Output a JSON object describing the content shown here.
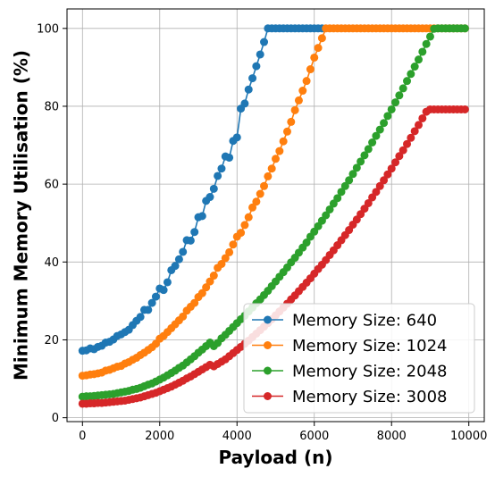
{
  "chart_data": {
    "type": "line",
    "title": "",
    "xlabel": "Payload (n)",
    "ylabel": "Minimum Memory Utilisation (%)",
    "xlim": [
      -400,
      10400
    ],
    "ylim": [
      -1,
      105
    ],
    "xticks": [
      0,
      2000,
      4000,
      6000,
      8000,
      10000
    ],
    "yticks": [
      0,
      20,
      40,
      60,
      80,
      100
    ],
    "grid": true,
    "legend_position": "lower-right",
    "series": [
      {
        "name": "Memory Size: 640",
        "color": "#1f77b4",
        "x": [
          0,
          100,
          200,
          300,
          400,
          500,
          600,
          700,
          800,
          900,
          1000,
          1100,
          1200,
          1300,
          1400,
          1500,
          1600,
          1700,
          1800,
          1900,
          2000,
          2100,
          2200,
          2300,
          2400,
          2500,
          2600,
          2700,
          2800,
          2900,
          3000,
          3100,
          3200,
          3300,
          3400,
          3500,
          3600,
          3700,
          3800,
          3900,
          4000,
          4100,
          4200,
          4300,
          4400,
          4500,
          4600,
          4700,
          4800,
          4900,
          5000,
          5100,
          5200,
          5300,
          5400,
          5500,
          5600,
          5700,
          5800,
          5900,
          6000,
          6100,
          6200
        ],
        "values": [
          17.2,
          17.3,
          17.8,
          17.6,
          18.2,
          18.5,
          19.3,
          19.5,
          20.1,
          21,
          21.4,
          22,
          22.6,
          23.8,
          24.9,
          25.9,
          27.7,
          27.7,
          29.5,
          31.1,
          33.2,
          32.8,
          34.8,
          37.9,
          39,
          40.7,
          42.6,
          45.6,
          45.5,
          47.7,
          51.5,
          51.8,
          55.7,
          56.7,
          58.8,
          62.1,
          64,
          67.1,
          66.8,
          71.1,
          72,
          79.4,
          80.7,
          84.3,
          87.2,
          90.3,
          93.3,
          96.5,
          100,
          100,
          100,
          100,
          100,
          100,
          100,
          100,
          100,
          100,
          100,
          100,
          100,
          100,
          100
        ]
      },
      {
        "name": "Memory Size: 1024",
        "color": "#ff7f0e",
        "x": [
          0,
          100,
          200,
          300,
          400,
          500,
          600,
          700,
          800,
          900,
          1000,
          1100,
          1200,
          1300,
          1400,
          1500,
          1600,
          1700,
          1800,
          1900,
          2000,
          2100,
          2200,
          2300,
          2400,
          2500,
          2600,
          2700,
          2800,
          2900,
          3000,
          3100,
          3200,
          3300,
          3400,
          3500,
          3600,
          3700,
          3800,
          3900,
          4000,
          4100,
          4200,
          4300,
          4400,
          4500,
          4600,
          4700,
          4800,
          4900,
          5000,
          5100,
          5200,
          5300,
          5400,
          5500,
          5600,
          5700,
          5800,
          5900,
          6000,
          6100,
          6200,
          6300,
          6400,
          6500,
          6600,
          6700,
          6800,
          6900,
          7000,
          7100,
          7200,
          7300,
          7400,
          7500,
          7600,
          7700,
          7800,
          7900,
          8000,
          8100,
          8200,
          8300,
          8400,
          8500,
          8600,
          8700,
          8800,
          8900,
          9000,
          9100,
          9200,
          9300,
          9400,
          9500,
          9600,
          9700,
          9800,
          9900
        ],
        "values": [
          10.8,
          10.9,
          11.1,
          11.2,
          11.4,
          11.6,
          12.1,
          12.3,
          12.7,
          13.1,
          13.3,
          13.9,
          14.3,
          14.9,
          15.4,
          16.1,
          16.7,
          17.4,
          18.1,
          19,
          20.3,
          21,
          22,
          23,
          24,
          25,
          26,
          27.5,
          28.5,
          29.5,
          31,
          32,
          33.5,
          35,
          36.5,
          38.5,
          39.5,
          41,
          42.5,
          44.5,
          46.5,
          47.5,
          49.5,
          51.5,
          54,
          55.5,
          57.5,
          59.5,
          62,
          64,
          66.5,
          68.5,
          71,
          73.5,
          76,
          79,
          81.5,
          84,
          86.5,
          89.5,
          92.5,
          95,
          97.5,
          100,
          100,
          100,
          100,
          100,
          100,
          100,
          100,
          100,
          100,
          100,
          100,
          100,
          100,
          100,
          100,
          100,
          100,
          100,
          100,
          100,
          100,
          100,
          100,
          100,
          100,
          100,
          100,
          100,
          100,
          100,
          100,
          100,
          100,
          100,
          100,
          100
        ]
      },
      {
        "name": "Memory Size: 2048",
        "color": "#2ca02c",
        "x": [
          0,
          100,
          200,
          300,
          400,
          500,
          600,
          700,
          800,
          900,
          1000,
          1100,
          1200,
          1300,
          1400,
          1500,
          1600,
          1700,
          1800,
          1900,
          2000,
          2100,
          2200,
          2300,
          2400,
          2500,
          2600,
          2700,
          2800,
          2900,
          3000,
          3100,
          3200,
          3300,
          3400,
          3500,
          3600,
          3700,
          3800,
          3900,
          4000,
          4100,
          4200,
          4300,
          4400,
          4500,
          4600,
          4700,
          4800,
          4900,
          5000,
          5100,
          5200,
          5300,
          5400,
          5500,
          5600,
          5700,
          5800,
          5900,
          6000,
          6100,
          6200,
          6300,
          6400,
          6500,
          6600,
          6700,
          6800,
          6900,
          7000,
          7100,
          7200,
          7300,
          7400,
          7500,
          7600,
          7700,
          7800,
          7900,
          8000,
          8100,
          8200,
          8300,
          8400,
          8500,
          8600,
          8700,
          8800,
          8900,
          9000,
          9100,
          9200,
          9300,
          9400,
          9500,
          9600,
          9700,
          9800,
          9900
        ],
        "values": [
          5.4,
          5.5,
          5.5,
          5.6,
          5.7,
          5.8,
          5.9,
          6,
          6.1,
          6.3,
          6.5,
          6.7,
          6.9,
          7.2,
          7.4,
          7.7,
          8.1,
          8.5,
          8.8,
          9.3,
          9.8,
          10.3,
          10.9,
          11.5,
          12.1,
          12.8,
          13.4,
          14.2,
          15,
          15.8,
          16.7,
          17.5,
          18.4,
          19.3,
          18.4,
          19.2,
          20.4,
          21.3,
          22.3,
          23.3,
          24.3,
          25.3,
          26.2,
          27.3,
          28.3,
          29.4,
          30.4,
          31.5,
          32.6,
          33.8,
          35,
          36.2,
          37.4,
          38.6,
          39.9,
          41.1,
          42.4,
          43.7,
          45,
          46.5,
          47.8,
          49.2,
          50.6,
          52,
          53.5,
          55,
          56.4,
          58,
          59.5,
          61,
          62.6,
          64.2,
          65.8,
          67.4,
          69,
          70.7,
          72.4,
          74,
          75.7,
          77.5,
          79.2,
          81,
          82.8,
          84.6,
          86.5,
          88.3,
          90.2,
          92,
          94,
          96,
          97.9,
          99.9,
          100,
          100,
          100,
          100,
          100,
          100,
          100,
          100
        ]
      },
      {
        "name": "Memory Size: 3008",
        "color": "#d62728",
        "x": [
          0,
          100,
          200,
          300,
          400,
          500,
          600,
          700,
          800,
          900,
          1000,
          1100,
          1200,
          1300,
          1400,
          1500,
          1600,
          1700,
          1800,
          1900,
          2000,
          2100,
          2200,
          2300,
          2400,
          2500,
          2600,
          2700,
          2800,
          2900,
          3000,
          3100,
          3200,
          3300,
          3400,
          3500,
          3600,
          3700,
          3800,
          3900,
          4000,
          4100,
          4200,
          4300,
          4400,
          4500,
          4600,
          4700,
          4800,
          4900,
          5000,
          5100,
          5200,
          5300,
          5400,
          5500,
          5600,
          5700,
          5800,
          5900,
          6000,
          6100,
          6200,
          6300,
          6400,
          6500,
          6600,
          6700,
          6800,
          6900,
          7000,
          7100,
          7200,
          7300,
          7400,
          7500,
          7600,
          7700,
          7800,
          7900,
          8000,
          8100,
          8200,
          8300,
          8400,
          8500,
          8600,
          8700,
          8800,
          8900,
          9000,
          9100,
          9200,
          9300,
          9400,
          9500,
          9600,
          9700,
          9800,
          9900
        ],
        "values": [
          3.6,
          3.6,
          3.7,
          3.7,
          3.8,
          3.8,
          3.9,
          4,
          4.1,
          4.2,
          4.3,
          4.4,
          4.6,
          4.8,
          5,
          5.2,
          5.5,
          5.8,
          6.1,
          6.4,
          6.8,
          7.2,
          7.6,
          8,
          8.5,
          9,
          9.5,
          10.1,
          10.6,
          11.2,
          11.8,
          12.4,
          13,
          13.6,
          13.2,
          13.8,
          14.4,
          15,
          15.8,
          16.6,
          17.4,
          18.2,
          19,
          19.8,
          20.7,
          21.6,
          22.5,
          23.4,
          24.3,
          25.3,
          26.3,
          27.3,
          28.3,
          29.3,
          30.4,
          31.4,
          32.5,
          33.6,
          34.7,
          35.8,
          37,
          38.2,
          39.3,
          40.5,
          41.8,
          43,
          44.3,
          45.6,
          46.9,
          48.2,
          49.6,
          50.9,
          52.3,
          53.7,
          55.1,
          56.6,
          58,
          59.5,
          61,
          62.5,
          64,
          65.6,
          67.2,
          68.7,
          70.3,
          71.9,
          73.6,
          75.2,
          76.9,
          78.6,
          79.2,
          79.2,
          79.2,
          79.2,
          79.2,
          79.2,
          79.2,
          79.2,
          79.2,
          79.2
        ]
      }
    ]
  }
}
